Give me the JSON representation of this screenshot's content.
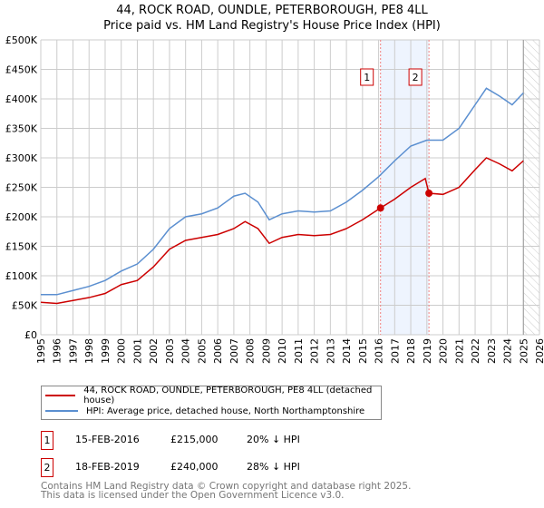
{
  "title": "44, ROCK ROAD, OUNDLE, PETERBOROUGH, PE8 4LL",
  "subtitle": "Price paid vs. HM Land Registry's House Price Index (HPI)",
  "legend": {
    "property": "44, ROCK ROAD, OUNDLE, PETERBOROUGH, PE8 4LL (detached house)",
    "hpi": "HPI: Average price, detached house, North Northamptonshire"
  },
  "transactions": [
    {
      "num": "1",
      "date": "15-FEB-2016",
      "price": "£215,000",
      "delta": "20% ↓ HPI"
    },
    {
      "num": "2",
      "date": "18-FEB-2019",
      "price": "£240,000",
      "delta": "28% ↓ HPI"
    }
  ],
  "footer": [
    "Contains HM Land Registry data © Crown copyright and database right 2025.",
    "This data is licensed under the Open Government Licence v3.0."
  ],
  "chart_data": {
    "type": "line",
    "xlim": [
      1995,
      2026
    ],
    "ylim": [
      0,
      500000
    ],
    "yticks": [
      0,
      50000,
      100000,
      150000,
      200000,
      250000,
      300000,
      350000,
      400000,
      450000,
      500000
    ],
    "ytick_labels": [
      "£0",
      "£50K",
      "£100K",
      "£150K",
      "£200K",
      "£250K",
      "£300K",
      "£350K",
      "£400K",
      "£450K",
      "£500K"
    ],
    "xticks": [
      "1995",
      "1996",
      "1997",
      "1998",
      "1999",
      "2000",
      "2001",
      "2002",
      "2003",
      "2004",
      "2005",
      "2006",
      "2007",
      "2008",
      "2009",
      "2010",
      "2011",
      "2012",
      "2013",
      "2014",
      "2015",
      "2016",
      "2017",
      "2018",
      "2019",
      "2020",
      "2021",
      "2022",
      "2023",
      "2024",
      "2025",
      "2026"
    ],
    "colors": {
      "property": "#cc0000",
      "hpi": "#5b8fd0",
      "shade": "#eef4fe"
    },
    "shaded_range": [
      2016.12,
      2019.13
    ],
    "forecast_from": 2025.0,
    "series": [
      {
        "name": "HPI",
        "x": [
          1995,
          1996,
          1997,
          1998,
          1999,
          2000,
          2001,
          2002,
          2003,
          2004,
          2005,
          2006,
          2007,
          2007.7,
          2008.5,
          2009.2,
          2010,
          2011,
          2012,
          2013,
          2014,
          2015,
          2016,
          2017,
          2018,
          2019,
          2020,
          2021,
          2022,
          2022.7,
          2023.5,
          2024.3,
          2025
        ],
        "y": [
          68000,
          68000,
          75000,
          82000,
          92000,
          108000,
          120000,
          145000,
          180000,
          200000,
          205000,
          215000,
          235000,
          240000,
          225000,
          195000,
          205000,
          210000,
          208000,
          210000,
          225000,
          245000,
          268000,
          295000,
          320000,
          330000,
          330000,
          350000,
          390000,
          418000,
          405000,
          390000,
          410000
        ]
      },
      {
        "name": "Property",
        "x": [
          1995,
          1996,
          1997,
          1998,
          1999,
          2000,
          2001,
          2002,
          2003,
          2004,
          2005,
          2006,
          2007,
          2007.7,
          2008.5,
          2009.2,
          2010,
          2011,
          2012,
          2013,
          2014,
          2015,
          2016.12,
          2017,
          2018,
          2018.9,
          2019.13,
          2020,
          2021,
          2022,
          2022.7,
          2023.5,
          2024.3,
          2025
        ],
        "y": [
          55000,
          53000,
          58000,
          63000,
          70000,
          85000,
          92000,
          115000,
          145000,
          160000,
          165000,
          170000,
          180000,
          192000,
          180000,
          155000,
          165000,
          170000,
          168000,
          170000,
          180000,
          195000,
          215000,
          230000,
          250000,
          265000,
          240000,
          238000,
          250000,
          280000,
          300000,
          290000,
          278000,
          295000
        ]
      }
    ],
    "sales": [
      {
        "label": "1",
        "x": 2016.12,
        "y": 215000
      },
      {
        "label": "2",
        "x": 2019.13,
        "y": 240000
      }
    ]
  }
}
